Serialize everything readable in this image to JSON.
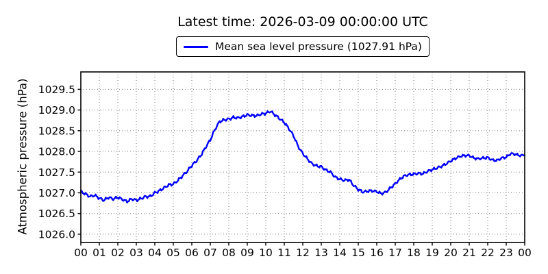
{
  "header": {
    "title": "Latest time: 2026-03-09 00:00:00 UTC"
  },
  "legend": {
    "label": "Mean sea level pressure (1027.91 hPa)"
  },
  "axes": {
    "ylabel": "Atmospheric pressure (hPa)",
    "x_tick_labels": [
      "00",
      "01",
      "02",
      "03",
      "04",
      "05",
      "06",
      "07",
      "08",
      "09",
      "10",
      "11",
      "12",
      "13",
      "14",
      "15",
      "16",
      "17",
      "18",
      "19",
      "20",
      "21",
      "22",
      "23",
      "00"
    ],
    "y_tick_labels": [
      "1026.0",
      "1026.5",
      "1027.0",
      "1027.5",
      "1028.0",
      "1028.5",
      "1029.0",
      "1029.5"
    ]
  },
  "colors": {
    "line": "#0000ff",
    "grid": "#7a7a7a",
    "axis": "#000000",
    "text": "#000000",
    "background": "#ffffff"
  },
  "chart_data": {
    "type": "line",
    "title": "Latest time: 2026-03-09 00:00:00 UTC",
    "xlabel": "",
    "ylabel": "Atmospheric pressure (hPa)",
    "legend_entries": [
      "Mean sea level pressure (1027.91 hPa)"
    ],
    "legend_position": "top-center",
    "grid": "dotted",
    "latest_value_hpa": 1027.91,
    "x_unit": "hour of day (UTC)",
    "xlim": [
      0,
      24
    ],
    "ylim": [
      1025.8,
      1029.92
    ],
    "x_ticks": [
      0,
      1,
      2,
      3,
      4,
      5,
      6,
      7,
      8,
      9,
      10,
      11,
      12,
      13,
      14,
      15,
      16,
      17,
      18,
      19,
      20,
      21,
      22,
      23,
      24
    ],
    "y_ticks": [
      1026.0,
      1026.5,
      1027.0,
      1027.5,
      1028.0,
      1028.5,
      1029.0,
      1029.5
    ],
    "x": [
      0,
      0.25,
      0.5,
      0.75,
      1,
      1.25,
      1.5,
      1.75,
      2,
      2.25,
      2.5,
      2.75,
      3,
      3.25,
      3.5,
      3.75,
      4,
      4.25,
      4.5,
      4.75,
      5,
      5.25,
      5.5,
      5.75,
      6,
      6.25,
      6.5,
      6.75,
      7,
      7.25,
      7.5,
      7.75,
      8,
      8.25,
      8.5,
      8.75,
      9,
      9.25,
      9.5,
      9.75,
      10,
      10.25,
      10.5,
      10.75,
      11,
      11.25,
      11.5,
      11.75,
      12,
      12.25,
      12.5,
      12.75,
      13,
      13.25,
      13.5,
      13.75,
      14,
      14.25,
      14.5,
      14.75,
      15,
      15.25,
      15.5,
      15.75,
      16,
      16.25,
      16.5,
      16.75,
      17,
      17.25,
      17.5,
      17.75,
      18,
      18.25,
      18.5,
      18.75,
      19,
      19.25,
      19.5,
      19.75,
      20,
      20.25,
      20.5,
      20.75,
      21,
      21.25,
      21.5,
      21.75,
      22,
      22.25,
      22.5,
      22.75,
      23,
      23.25,
      23.5,
      23.75,
      24
    ],
    "y": [
      1027.03,
      1026.97,
      1026.91,
      1026.94,
      1026.87,
      1026.82,
      1026.89,
      1026.85,
      1026.89,
      1026.84,
      1026.79,
      1026.85,
      1026.82,
      1026.86,
      1026.91,
      1026.91,
      1027.0,
      1027.05,
      1027.12,
      1027.19,
      1027.21,
      1027.3,
      1027.41,
      1027.52,
      1027.66,
      1027.77,
      1027.91,
      1028.1,
      1028.28,
      1028.53,
      1028.72,
      1028.76,
      1028.78,
      1028.82,
      1028.81,
      1028.84,
      1028.88,
      1028.87,
      1028.86,
      1028.9,
      1028.92,
      1028.97,
      1028.88,
      1028.79,
      1028.7,
      1028.55,
      1028.38,
      1028.12,
      1027.95,
      1027.82,
      1027.7,
      1027.65,
      1027.63,
      1027.55,
      1027.5,
      1027.38,
      1027.33,
      1027.3,
      1027.32,
      1027.18,
      1027.08,
      1027.02,
      1027.04,
      1027.05,
      1027.03,
      1026.98,
      1027.02,
      1027.12,
      1027.22,
      1027.33,
      1027.41,
      1027.44,
      1027.45,
      1027.47,
      1027.46,
      1027.52,
      1027.56,
      1027.6,
      1027.64,
      1027.7,
      1027.77,
      1027.83,
      1027.88,
      1027.9,
      1027.9,
      1027.84,
      1027.82,
      1027.84,
      1027.85,
      1027.79,
      1027.78,
      1027.84,
      1027.86,
      1027.95,
      1027.93,
      1027.9,
      1027.91
    ]
  }
}
